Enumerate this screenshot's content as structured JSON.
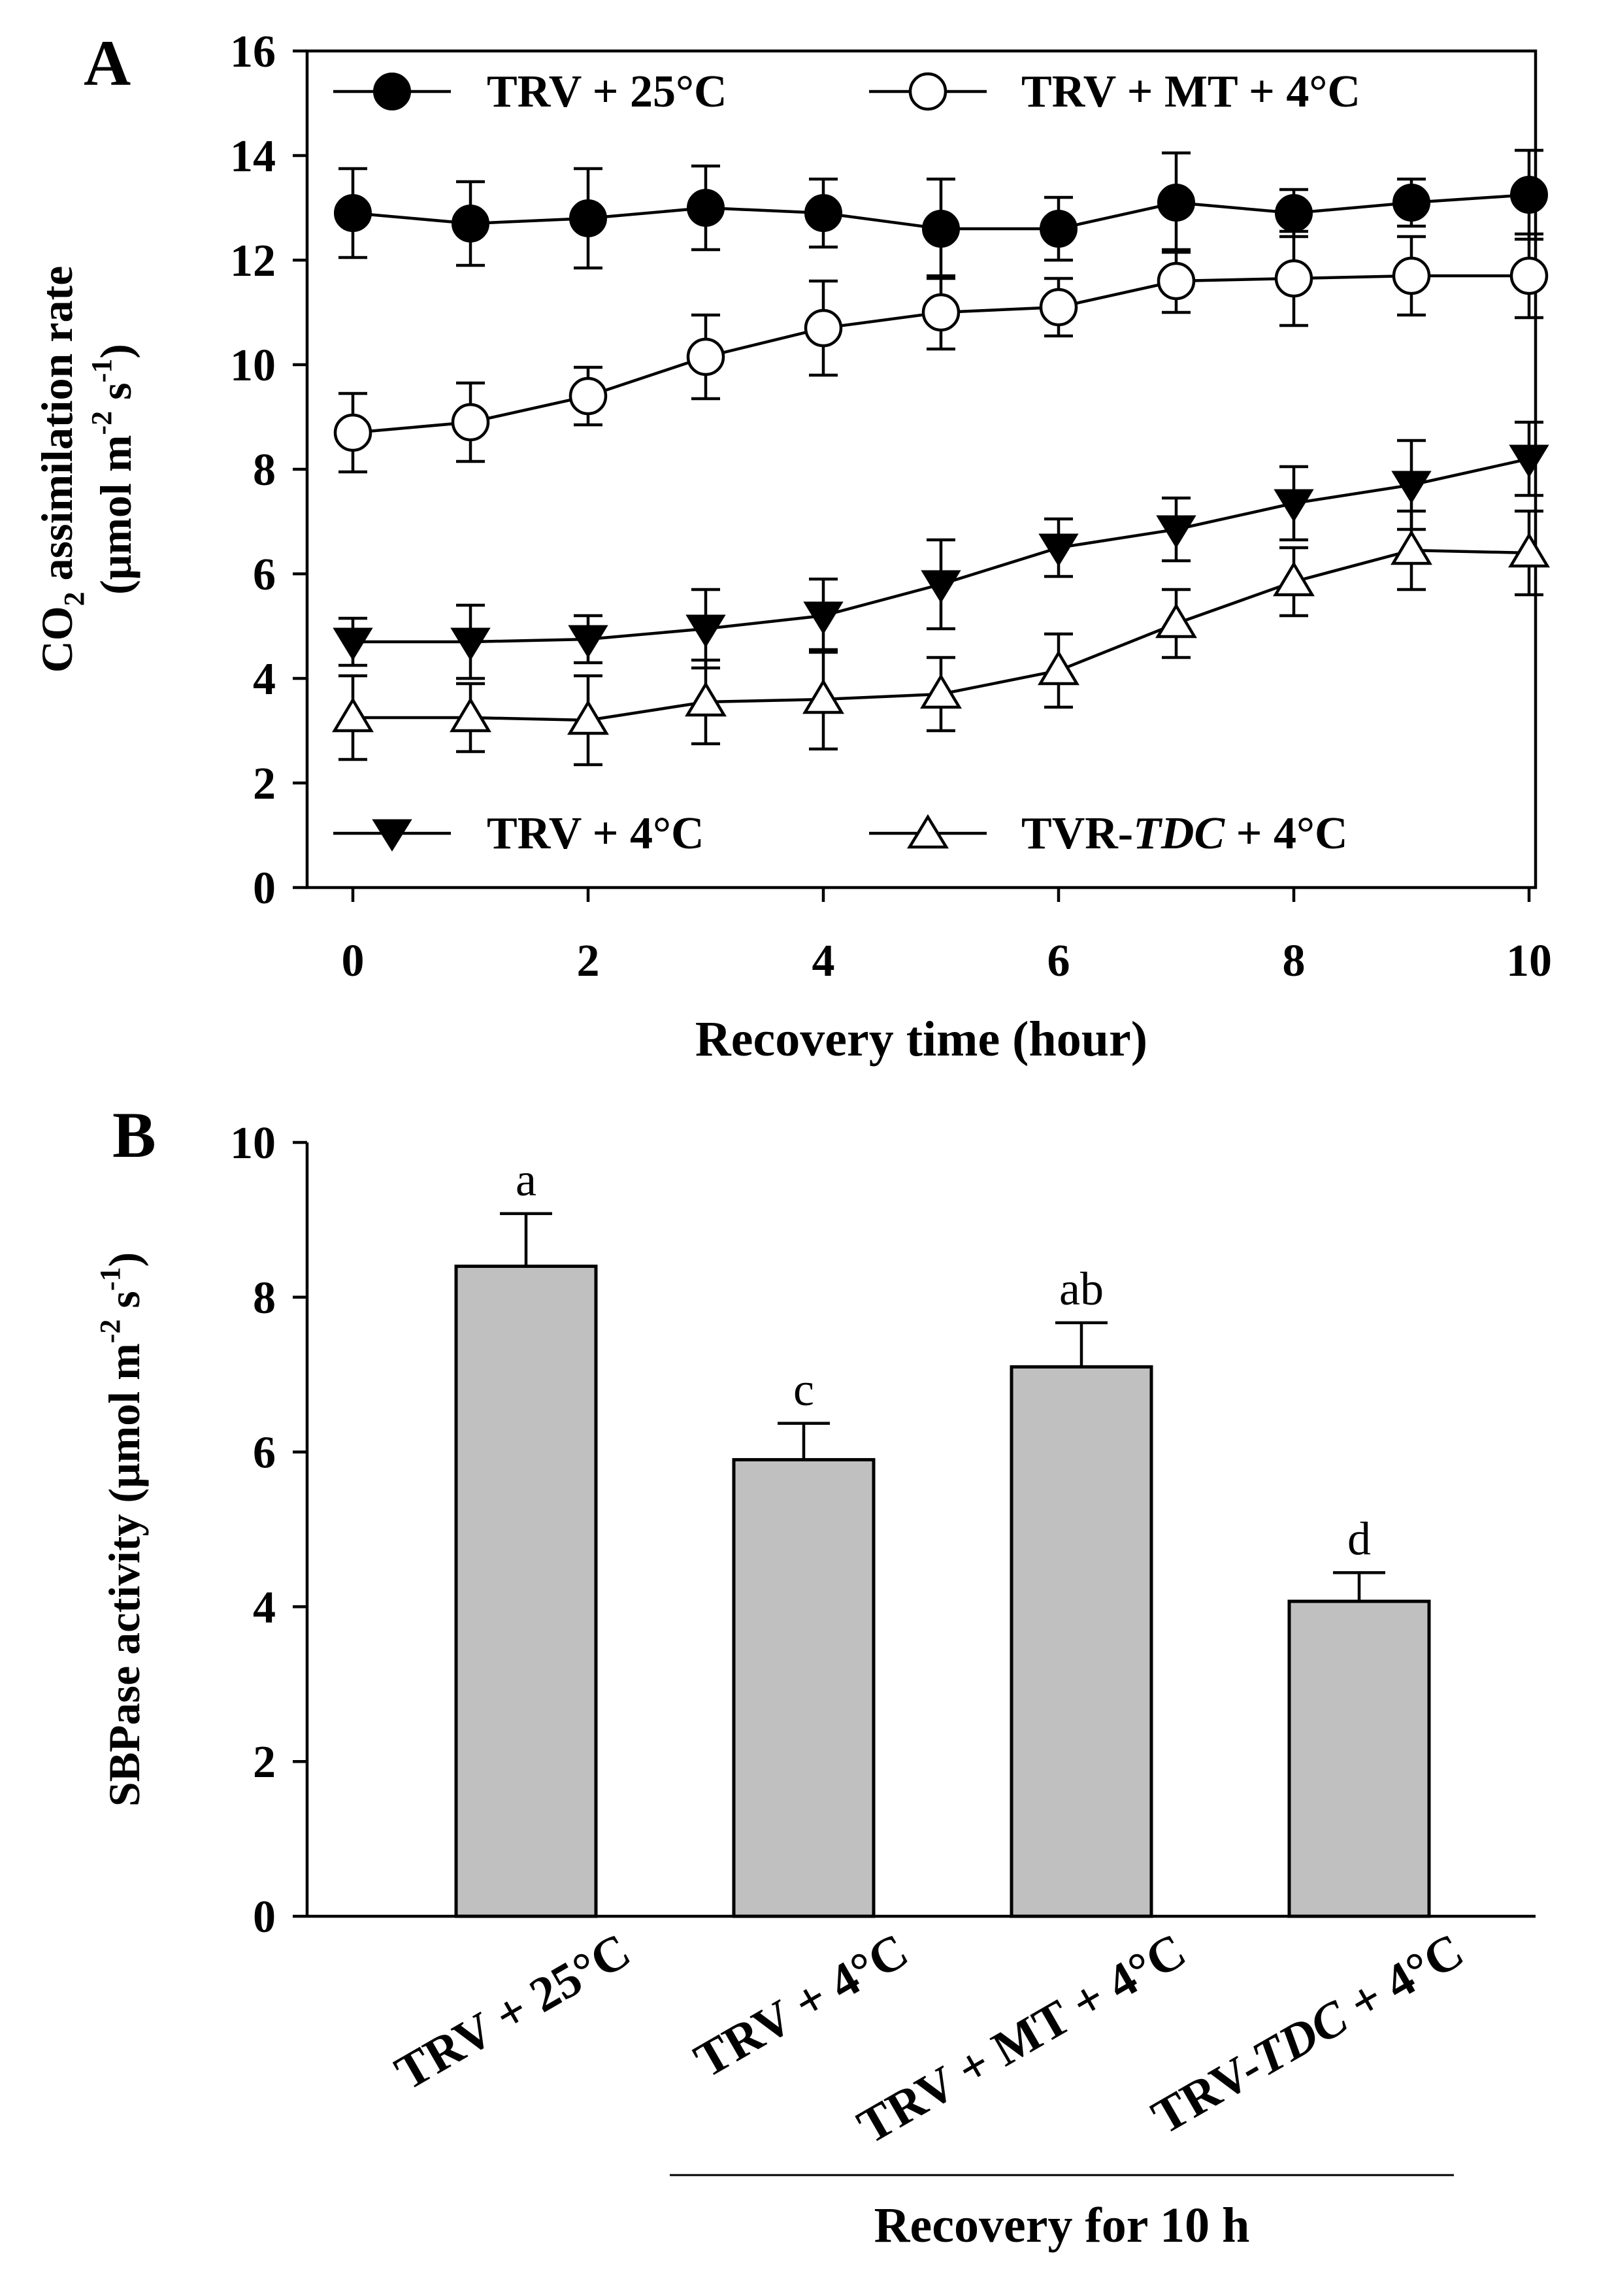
{
  "chart_data": [
    {
      "type": "line",
      "panel_label": "A",
      "ylabel_line1": "CO",
      "ylabel_sub": "2",
      "ylabel_line1_rest": " assimilation rate",
      "ylabel_line2": "(μmol m",
      "ylabel_line2_exp1": "-2",
      "ylabel_line2_mid": " s",
      "ylabel_line2_exp2": "-1",
      "ylabel_line2_end": ")",
      "xlabel": "Recovery time (hour)",
      "xlim": [
        0,
        10
      ],
      "ylim": [
        0,
        16
      ],
      "xticks": [
        "0",
        "2",
        "4",
        "6",
        "8",
        "10"
      ],
      "yticks": [
        "0",
        "2",
        "4",
        "6",
        "8",
        "10",
        "12",
        "14",
        "16"
      ],
      "x": [
        0,
        1,
        2,
        3,
        4,
        5,
        6,
        7,
        8,
        9,
        10
      ],
      "series": [
        {
          "name": "TRV + 25°C",
          "marker": "circle-filled",
          "values": [
            12.9,
            12.7,
            12.8,
            13.0,
            12.9,
            12.6,
            12.6,
            13.1,
            12.9,
            13.1,
            13.25
          ],
          "errors": [
            0.85,
            0.8,
            0.95,
            0.8,
            0.65,
            0.95,
            0.6,
            0.95,
            0.45,
            0.45,
            0.85
          ]
        },
        {
          "name": "TRV + MT + 4°C",
          "marker": "circle-open",
          "values": [
            8.7,
            8.9,
            9.4,
            10.15,
            10.7,
            11.0,
            11.1,
            11.6,
            11.65,
            11.7,
            11.7
          ],
          "errors": [
            0.75,
            0.75,
            0.55,
            0.8,
            0.9,
            0.7,
            0.55,
            0.6,
            0.9,
            0.75,
            0.8
          ]
        },
        {
          "name": "TRV + 4°C",
          "marker": "triangle-down-filled",
          "values": [
            4.7,
            4.7,
            4.75,
            4.95,
            5.2,
            5.8,
            6.5,
            6.85,
            7.35,
            7.7,
            8.2
          ],
          "errors": [
            0.45,
            0.7,
            0.45,
            0.75,
            0.7,
            0.85,
            0.55,
            0.6,
            0.7,
            0.85,
            0.7
          ]
        },
        {
          "name_prefix": "TVR-",
          "name_italic": "TDC",
          "name_suffix": " + 4°C",
          "marker": "triangle-up-open",
          "values": [
            3.25,
            3.25,
            3.2,
            3.55,
            3.6,
            3.7,
            4.15,
            5.05,
            5.85,
            6.45,
            6.4
          ],
          "errors": [
            0.8,
            0.65,
            0.85,
            0.8,
            0.95,
            0.7,
            0.7,
            0.65,
            0.65,
            0.75,
            0.8
          ]
        }
      ]
    },
    {
      "type": "bar",
      "panel_label": "B",
      "ylabel_pre": "SBPase activity (μmol m",
      "ylabel_exp1": "-2",
      "ylabel_mid": " s",
      "ylabel_exp2": "-1",
      "ylabel_end": ")",
      "ylim": [
        0,
        10
      ],
      "yticks": [
        "0",
        "2",
        "4",
        "6",
        "8",
        "10"
      ],
      "categories": [
        {
          "pre": "TRV + 25°C",
          "ital": "",
          "post": ""
        },
        {
          "pre": "TRV + 4°C",
          "ital": "",
          "post": ""
        },
        {
          "pre": "TRV + MT + 4°C",
          "ital": "",
          "post": ""
        },
        {
          "pre": "TRV-",
          "ital": "TDC",
          "post": " + 4°C"
        }
      ],
      "values": [
        8.4,
        5.9,
        7.1,
        4.07
      ],
      "errors": [
        0.68,
        0.47,
        0.57,
        0.37
      ],
      "significance_labels": [
        "a",
        "c",
        "ab",
        "d"
      ],
      "group_label": "Recovery for 10 h"
    }
  ]
}
